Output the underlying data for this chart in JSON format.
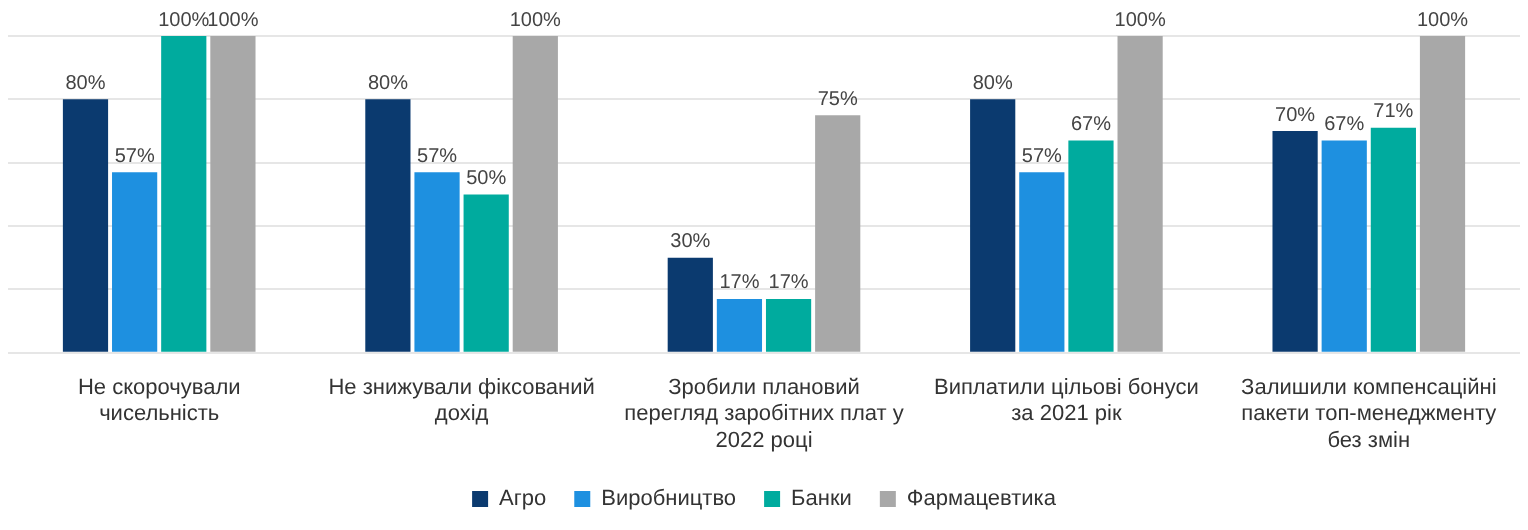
{
  "chart_data": {
    "type": "bar",
    "categories": [
      "Не скорочували чисельність",
      "Не знижували фіксований дохід",
      "Зробили плановий перегляд заробітних плат у 2022 році",
      "Виплатили цільові бонуси за 2021 рік",
      "Залишили компенсаційні пакети топ-менеджменту без змін"
    ],
    "series": [
      {
        "name": "Агро",
        "color": "#0b3a6f",
        "values": [
          80,
          80,
          30,
          80,
          70
        ],
        "value_labels": [
          "80%",
          "80%",
          "30%",
          "80%",
          "70%"
        ]
      },
      {
        "name": "Виробництво",
        "color": "#1e90e0",
        "values": [
          57,
          57,
          17,
          57,
          67
        ],
        "value_labels": [
          "57%",
          "57%",
          "17%",
          "57%",
          "67%"
        ]
      },
      {
        "name": "Банки",
        "color": "#00ab9e",
        "values": [
          100,
          50,
          17,
          67,
          71
        ],
        "value_labels": [
          "100%",
          "50%",
          "17%",
          "67%",
          "71%"
        ]
      },
      {
        "name": "Фармацевтика",
        "color": "#a8a8a8",
        "values": [
          100,
          100,
          75,
          100,
          100
        ],
        "value_labels": [
          "100%",
          "100%",
          "75%",
          "100%",
          "100%"
        ]
      }
    ],
    "ylim": [
      0,
      100
    ],
    "yticks": [
      {
        "value": 0,
        "label": null
      },
      {
        "value": 20,
        "label": null
      },
      {
        "value": 40,
        "label": null
      },
      {
        "value": 60,
        "label": null
      },
      {
        "value": 80,
        "label": null
      },
      {
        "value": 100,
        "label": null
      }
    ],
    "grid": "y",
    "legend": "bottom",
    "tick_labels": "x"
  }
}
